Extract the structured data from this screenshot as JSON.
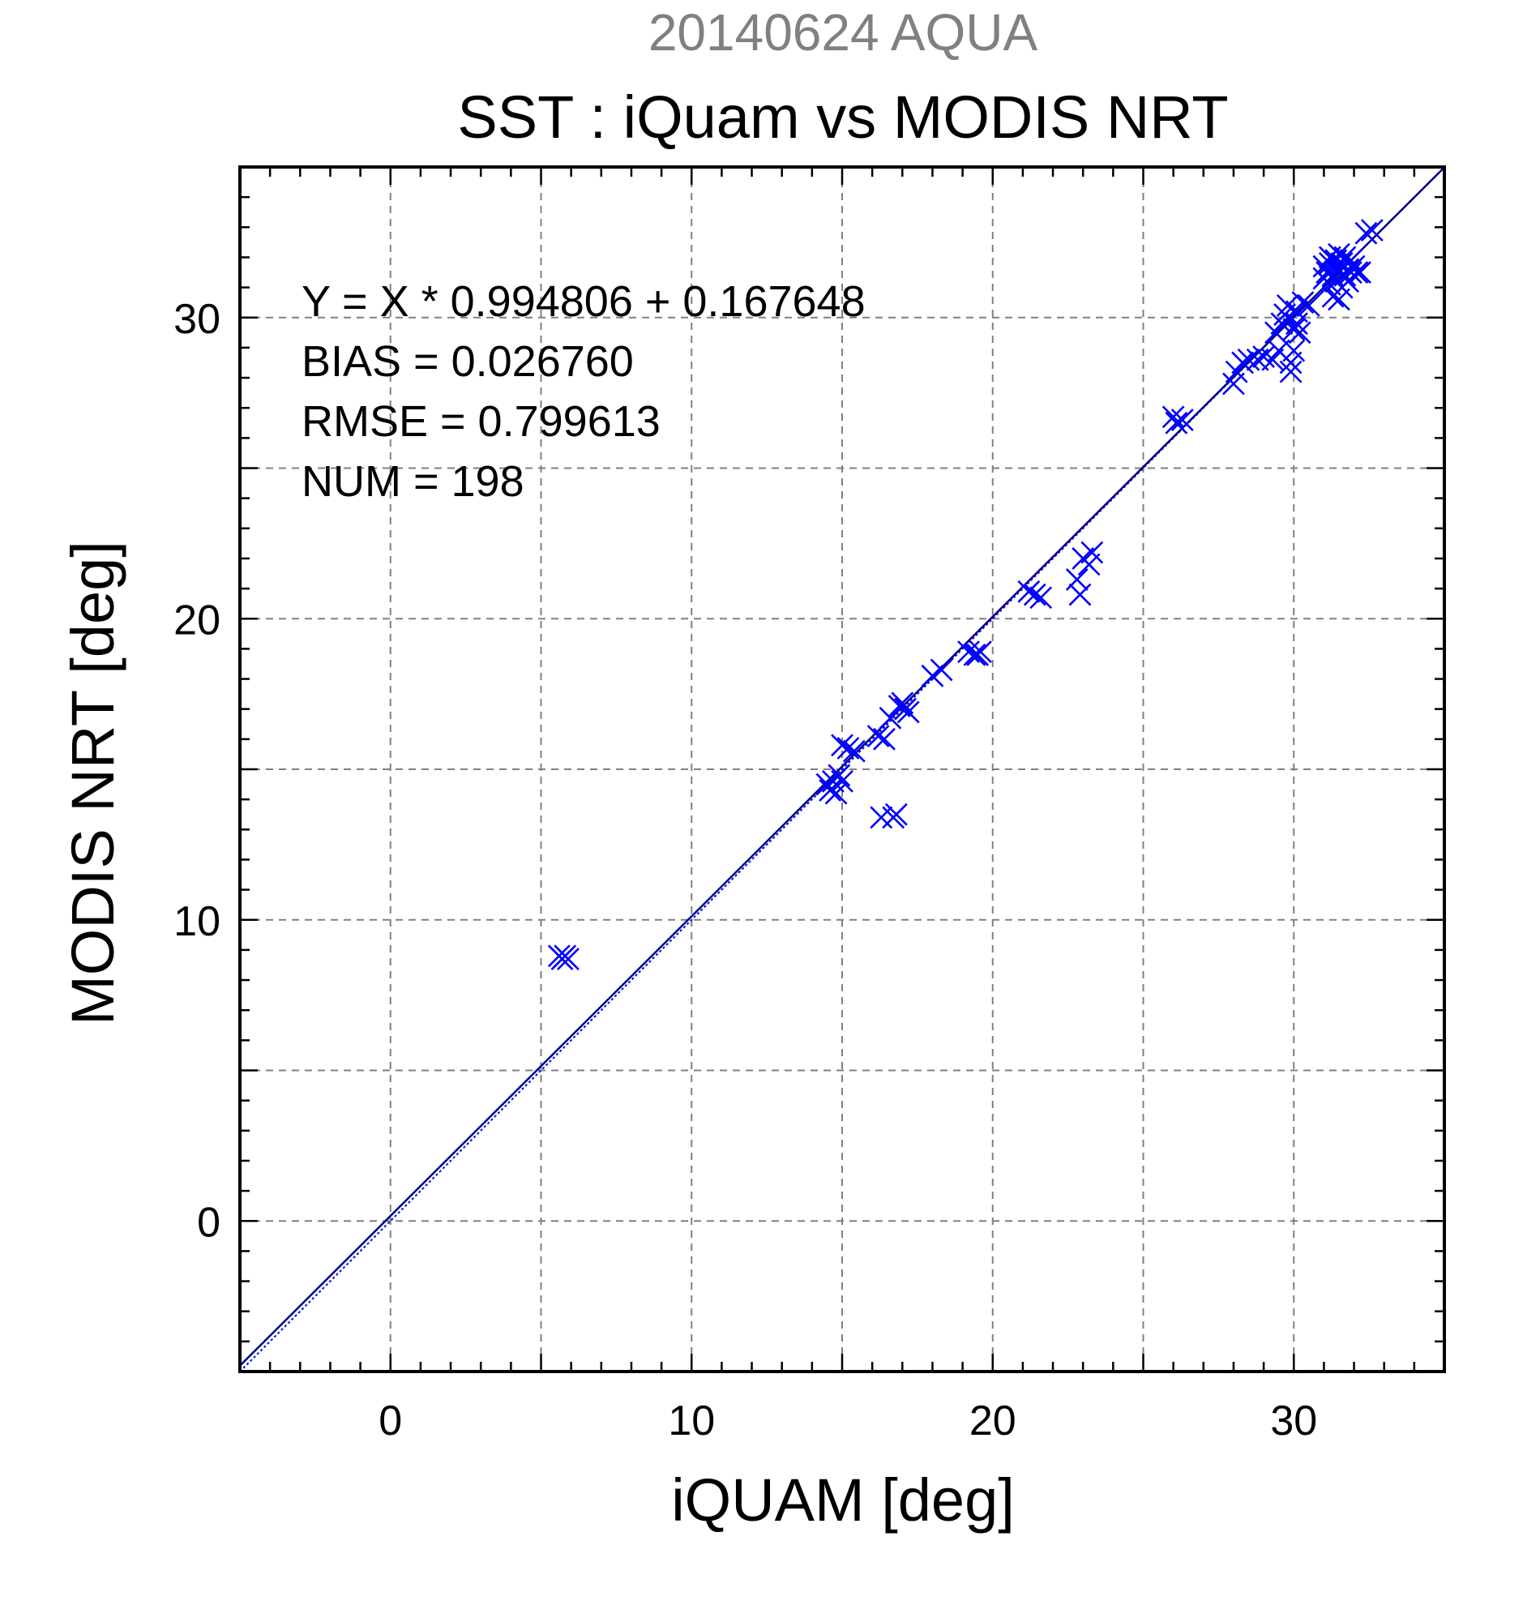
{
  "chart_data": {
    "type": "scatter",
    "date_title": "20140624 AQUA",
    "title": "SST : iQuam vs MODIS NRT",
    "xlabel": "iQUAM [deg]",
    "ylabel": "MODIS NRT [deg]",
    "xlim": [
      -5,
      35
    ],
    "ylim": [
      -5,
      35
    ],
    "x_ticks": [
      0,
      10,
      20,
      30
    ],
    "y_ticks": [
      0,
      10,
      20,
      30
    ],
    "grid": true,
    "grid_step": 5,
    "marker": "x",
    "marker_color": "#0000ff",
    "fit": {
      "slope": 0.994806,
      "intercept": 0.167648,
      "color": "#00008b"
    },
    "identity_line_color": "#0000ff",
    "stats": [
      "Y = X * 0.994806 + 0.167648",
      "BIAS = 0.026760",
      "RMSE = 0.799613",
      "NUM = 198"
    ],
    "points": [
      [
        5.6,
        8.8
      ],
      [
        5.7,
        8.7
      ],
      [
        5.8,
        8.8
      ],
      [
        5.9,
        8.7
      ],
      [
        14.5,
        14.5
      ],
      [
        14.6,
        14.3
      ],
      [
        14.7,
        14.6
      ],
      [
        14.8,
        14.2
      ],
      [
        15.0,
        14.6
      ],
      [
        14.9,
        14.8
      ],
      [
        15.0,
        15.8
      ],
      [
        15.2,
        15.7
      ],
      [
        15.4,
        15.6
      ],
      [
        16.3,
        13.4
      ],
      [
        16.7,
        13.4
      ],
      [
        16.8,
        13.5
      ],
      [
        16.2,
        16.1
      ],
      [
        16.4,
        16.0
      ],
      [
        16.6,
        16.7
      ],
      [
        16.9,
        17.1
      ],
      [
        17.1,
        17.0
      ],
      [
        17.2,
        16.9
      ],
      [
        17.0,
        17.2
      ],
      [
        18.0,
        18.1
      ],
      [
        18.3,
        18.3
      ],
      [
        19.2,
        18.9
      ],
      [
        19.4,
        18.8
      ],
      [
        19.6,
        18.9
      ],
      [
        19.5,
        18.8
      ],
      [
        21.2,
        20.9
      ],
      [
        21.4,
        20.8
      ],
      [
        21.6,
        20.7
      ],
      [
        22.9,
        20.8
      ],
      [
        22.8,
        21.3
      ],
      [
        23.0,
        22.0
      ],
      [
        23.2,
        21.8
      ],
      [
        23.3,
        22.2
      ],
      [
        26.0,
        26.7
      ],
      [
        26.1,
        26.5
      ],
      [
        26.3,
        26.6
      ],
      [
        28.0,
        27.8
      ],
      [
        28.1,
        28.2
      ],
      [
        28.3,
        28.5
      ],
      [
        28.5,
        28.6
      ],
      [
        28.8,
        28.6
      ],
      [
        29.0,
        28.7
      ],
      [
        29.3,
        28.6
      ],
      [
        29.5,
        28.9
      ],
      [
        29.4,
        29.5
      ],
      [
        29.6,
        29.8
      ],
      [
        29.7,
        30.1
      ],
      [
        29.8,
        30.4
      ],
      [
        29.9,
        28.2
      ],
      [
        29.9,
        28.5
      ],
      [
        30.0,
        28.9
      ],
      [
        30.0,
        29.6
      ],
      [
        30.1,
        29.8
      ],
      [
        30.2,
        29.5
      ],
      [
        30.1,
        30.2
      ],
      [
        30.3,
        30.5
      ],
      [
        30.5,
        30.4
      ],
      [
        31.0,
        31.3
      ],
      [
        31.0,
        31.7
      ],
      [
        31.1,
        31.5
      ],
      [
        31.2,
        31.1
      ],
      [
        31.2,
        31.8
      ],
      [
        31.3,
        31.4
      ],
      [
        31.3,
        30.7
      ],
      [
        31.4,
        31.2
      ],
      [
        31.4,
        31.9
      ],
      [
        31.5,
        31.6
      ],
      [
        31.5,
        30.6
      ],
      [
        31.6,
        31.0
      ],
      [
        31.6,
        31.8
      ],
      [
        31.7,
        31.4
      ],
      [
        31.7,
        32.0
      ],
      [
        31.8,
        31.6
      ],
      [
        31.8,
        31.2
      ],
      [
        31.9,
        31.5
      ],
      [
        31.9,
        31.9
      ],
      [
        32.0,
        31.7
      ],
      [
        32.1,
        31.5
      ],
      [
        31.2,
        32.0
      ],
      [
        31.5,
        32.1
      ],
      [
        32.4,
        32.8
      ],
      [
        32.6,
        32.9
      ],
      [
        32.2,
        31.5
      ]
    ]
  }
}
